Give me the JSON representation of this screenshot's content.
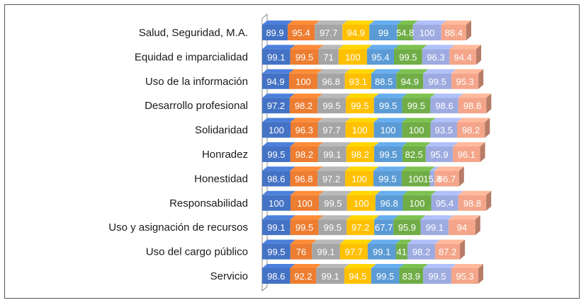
{
  "chart_data": {
    "type": "bar",
    "orientation": "horizontal",
    "stacked": true,
    "three_d": true,
    "grid": false,
    "legend": "none",
    "categories": [
      "Salud, Seguridad, M.A.",
      "Equidad e imparcialidad",
      "Uso de la información",
      "Desarrollo profesional",
      "Solidaridad",
      "Honradez",
      "Honestidad",
      "Responsabilidad",
      "Uso y asignación de recursos",
      "Uso del cargo público",
      "Servicio"
    ],
    "series": [
      {
        "color": "#4472c4",
        "values": [
          89.9,
          99.1,
          94.9,
          97.2,
          100,
          99.5,
          98.6,
          100,
          99.1,
          99.5,
          98.6
        ]
      },
      {
        "color": "#ed7d31",
        "values": [
          95.4,
          99.5,
          100,
          98.2,
          96.3,
          98.2,
          96.8,
          100,
          99.5,
          76,
          92.2
        ]
      },
      {
        "color": "#a5a5a5",
        "values": [
          97.7,
          71,
          96.8,
          99.5,
          97.7,
          99.1,
          97.2,
          99.5,
          99.5,
          99.1,
          99.1
        ]
      },
      {
        "color": "#ffc000",
        "values": [
          94.9,
          100,
          93.1,
          99.5,
          100,
          98.2,
          100,
          100,
          97.2,
          97.7,
          94.5
        ]
      },
      {
        "color": "#5b9bd5",
        "values": [
          99,
          95.4,
          88.5,
          99.5,
          100,
          99.5,
          99.5,
          96.8,
          67.7,
          99.1,
          99.5
        ]
      },
      {
        "color": "#70ad47",
        "values": [
          54.8,
          99.5,
          94.9,
          99.5,
          100,
          82.5,
          100,
          100,
          95.9,
          41,
          83.9
        ]
      },
      {
        "color": "#9dabe0",
        "values": [
          100,
          96.3,
          99.5,
          98.6,
          93.5,
          95.9,
          15.8,
          95.4,
          99.1,
          98.2,
          99.5
        ]
      },
      {
        "color": "#f4a58a",
        "values": [
          88.4,
          94.4,
          95.3,
          98.8,
          98.2,
          96.1,
          86.7,
          98.8,
          94,
          87.2,
          95.3
        ]
      }
    ]
  }
}
